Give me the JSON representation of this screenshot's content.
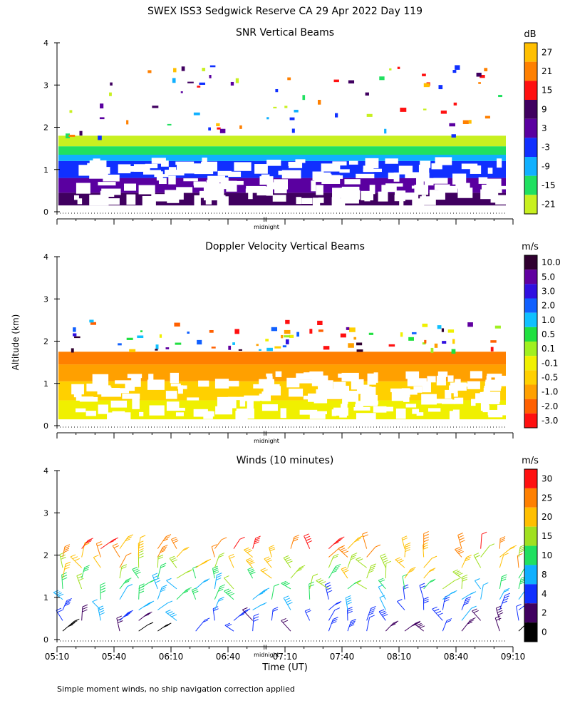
{
  "figure_title": "SWEX ISS3 Sedgwick Reserve CA  29 Apr 2022 Day 119",
  "ylabel": "Altitude (km)",
  "xlabel": "Time (UT)",
  "midnight_label": "midnight",
  "midnight_marker": "II",
  "footnote": "Simple moment winds, no ship navigation correction applied",
  "chart_data": [
    {
      "id": "snr",
      "type": "heatmap",
      "title": "SNR Vertical Beams",
      "units": "dB",
      "ylim": [
        0,
        4
      ],
      "yticks": [
        "0",
        "1",
        "2",
        "3",
        "4"
      ],
      "show_time_labels": false,
      "colorbar": {
        "labels": [
          "27",
          "21",
          "15",
          "9",
          "3",
          "-3",
          "-9",
          "-15",
          "-21"
        ],
        "colors": [
          "#ffbf00",
          "#ff8000",
          "#ff1010",
          "#400060",
          "#5a00a0",
          "#1030ff",
          "#10b0ff",
          "#20e060",
          "#c8f020"
        ]
      },
      "bands": [
        {
          "from": 0.15,
          "to": 0.45,
          "color": "#400060"
        },
        {
          "from": 0.45,
          "to": 0.8,
          "color": "#5a00a0"
        },
        {
          "from": 0.8,
          "to": 1.2,
          "color": "#1030ff"
        },
        {
          "from": 1.2,
          "to": 1.35,
          "color": "#10b0ff"
        },
        {
          "from": 1.35,
          "to": 1.55,
          "color": "#20e060"
        },
        {
          "from": 1.55,
          "to": 1.8,
          "color": "#c8f020"
        }
      ]
    },
    {
      "id": "doppler",
      "type": "heatmap",
      "title": "Doppler Velocity Vertical Beams",
      "units": "m/s",
      "ylim": [
        0,
        4
      ],
      "yticks": [
        "0",
        "1",
        "2",
        "3",
        "4"
      ],
      "show_time_labels": false,
      "colorbar": {
        "labels": [
          "10.0",
          "5.0",
          "3.0",
          "2.0",
          "1.0",
          "0.5",
          "0.1",
          "-0.1",
          "-0.5",
          "-1.0",
          "-2.0",
          "-3.0"
        ],
        "colors": [
          "#300030",
          "#6000a0",
          "#3010e0",
          "#1060ff",
          "#10c0ff",
          "#20e040",
          "#a0f020",
          "#f0f000",
          "#ffd000",
          "#ffa000",
          "#ff6000",
          "#ff1010"
        ]
      },
      "bands": [
        {
          "from": 0.15,
          "to": 0.6,
          "color": "#f0f000"
        },
        {
          "from": 0.6,
          "to": 1.05,
          "color": "#ffd000"
        },
        {
          "from": 1.05,
          "to": 1.45,
          "color": "#ffa000"
        },
        {
          "from": 1.45,
          "to": 1.75,
          "color": "#ff8000"
        }
      ]
    },
    {
      "id": "winds",
      "type": "scatter",
      "title": "Winds (10 minutes)",
      "units": "m/s",
      "ylim": [
        0,
        4
      ],
      "yticks": [
        "0",
        "1",
        "2",
        "3",
        "4"
      ],
      "show_time_labels": true,
      "x_tick_labels": [
        "05:10",
        "05:40",
        "06:10",
        "06:40",
        "07:10",
        "07:40",
        "08:10",
        "08:40",
        "09:10"
      ],
      "colorbar": {
        "labels": [
          "30",
          "25",
          "20",
          "15",
          "10",
          "8",
          "4",
          "2",
          "0"
        ],
        "colors": [
          "#ff1010",
          "#ff8000",
          "#ffbf00",
          "#a0e020",
          "#20e060",
          "#10b0ff",
          "#1030ff",
          "#400060",
          "#000000"
        ]
      },
      "barb_times": [
        "05:10",
        "05:20",
        "05:30",
        "05:40",
        "05:50",
        "06:00",
        "06:10",
        "06:20",
        "06:30",
        "06:40",
        "06:50",
        "07:00",
        "07:10",
        "07:20",
        "07:30",
        "07:40",
        "07:50",
        "08:00",
        "08:10",
        "08:20",
        "08:30",
        "08:40",
        "08:50",
        "09:00",
        "09:10"
      ],
      "barb_altitudes_km": [
        0.2,
        0.45,
        0.7,
        0.95,
        1.2,
        1.45,
        1.7,
        1.95,
        2.15
      ]
    }
  ]
}
